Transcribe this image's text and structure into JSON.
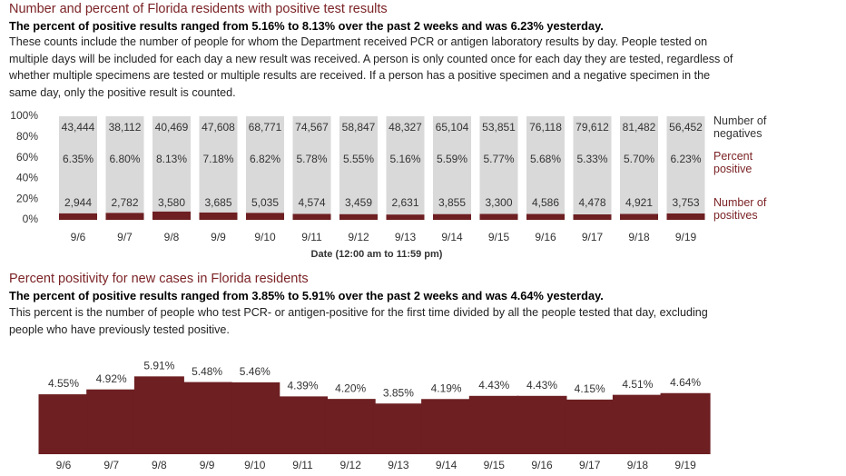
{
  "chart_data": [
    {
      "type": "stacked_percent_bar",
      "title": "Number and percent of Florida residents with positive test results",
      "subtitle": "The percent of positive results ranged from 5.16% to 8.13% over the past 2 weeks and was 6.23% yesterday.",
      "description": "These counts include the number of people for whom the Department received PCR or antigen laboratory results by day. People tested on multiple days will be included for each day a new result was received. A person is only counted once for each day they are tested, regardless of whether multiple specimens are tested or multiple results are received. If a person has a positive specimen and a negative specimen in the same day, only the positive result is counted.",
      "categories": [
        "9/6",
        "9/7",
        "9/8",
        "9/9",
        "9/10",
        "9/11",
        "9/12",
        "9/13",
        "9/14",
        "9/15",
        "9/16",
        "9/17",
        "9/18",
        "9/19"
      ],
      "series": [
        {
          "name": "Number of positives",
          "color": "#6d1f22",
          "values": [
            2944,
            2782,
            3580,
            3685,
            5035,
            4574,
            3459,
            2631,
            3855,
            3300,
            4586,
            4478,
            4921,
            3753
          ],
          "value_labels": [
            "2,944",
            "2,782",
            "3,580",
            "3,685",
            "5,035",
            "4,574",
            "3,459",
            "2,631",
            "3,855",
            "3,300",
            "4,586",
            "4,478",
            "4,921",
            "3,753"
          ]
        },
        {
          "name": "Number of negatives",
          "color": "#d9d9d9",
          "values": [
            43444,
            38112,
            40469,
            47608,
            68771,
            74567,
            58847,
            48327,
            65104,
            53851,
            76118,
            79612,
            81482,
            56452
          ],
          "value_labels": [
            "43,444",
            "38,112",
            "40,469",
            "47,608",
            "68,771",
            "74,567",
            "58,847",
            "48,327",
            "65,104",
            "53,851",
            "76,118",
            "79,612",
            "81,482",
            "56,452"
          ]
        }
      ],
      "percent_positive": {
        "name": "Percent positive",
        "values": [
          6.35,
          6.8,
          8.13,
          7.18,
          6.82,
          5.78,
          5.55,
          5.16,
          5.59,
          5.77,
          5.68,
          5.33,
          5.7,
          6.23
        ],
        "value_labels": [
          "6.35%",
          "6.80%",
          "8.13%",
          "7.18%",
          "6.82%",
          "5.78%",
          "5.55%",
          "5.16%",
          "5.59%",
          "5.77%",
          "5.68%",
          "5.33%",
          "5.70%",
          "6.23%"
        ]
      },
      "ylim": [
        0,
        100
      ],
      "yticks": [
        {
          "value": 0,
          "label": "0%"
        },
        {
          "value": 20,
          "label": "20%"
        },
        {
          "value": 40,
          "label": "40%"
        },
        {
          "value": 60,
          "label": "60%"
        },
        {
          "value": 80,
          "label": "80%"
        },
        {
          "value": 100,
          "label": "100%"
        }
      ],
      "xlabel": "Date (12:00 am to 11:59 pm)"
    },
    {
      "type": "bar",
      "title": "Percent positivity for new cases in Florida residents",
      "subtitle": "The percent of positive results ranged from 3.85% to 5.91% over the past 2 weeks and was 4.64% yesterday.",
      "description": "This percent is the number of people who test PCR- or antigen-positive for the first time divided by all the people tested that day, excluding people who have previously tested positive.",
      "categories": [
        "9/6",
        "9/7",
        "9/8",
        "9/9",
        "9/10",
        "9/11",
        "9/12",
        "9/13",
        "9/14",
        "9/15",
        "9/16",
        "9/17",
        "9/18",
        "9/19"
      ],
      "values": [
        4.55,
        4.92,
        5.91,
        5.48,
        5.46,
        4.39,
        4.2,
        3.85,
        4.19,
        4.43,
        4.43,
        4.15,
        4.51,
        4.64
      ],
      "value_labels": [
        "4.55%",
        "4.92%",
        "5.91%",
        "5.48%",
        "5.46%",
        "4.39%",
        "4.20%",
        "3.85%",
        "4.19%",
        "4.43%",
        "4.43%",
        "4.15%",
        "4.51%",
        "4.64%"
      ],
      "color": "#6d1f22",
      "ylim": [
        0,
        6.9
      ]
    }
  ]
}
